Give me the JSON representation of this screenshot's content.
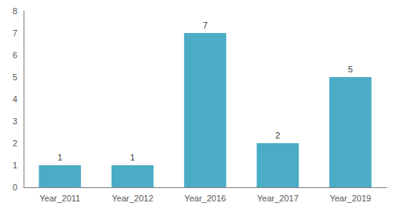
{
  "chart_data": {
    "type": "bar",
    "categories": [
      "Year_2011",
      "Year_2012",
      "Year_2016",
      "Year_2017",
      "Year_2019"
    ],
    "values": [
      1,
      1,
      7,
      2,
      5
    ],
    "color": "#4bacc6",
    "ylim": [
      0,
      8
    ],
    "yticks": [
      0,
      1,
      2,
      3,
      4,
      5,
      6,
      7,
      8
    ],
    "grid": false,
    "data_labels": true
  }
}
